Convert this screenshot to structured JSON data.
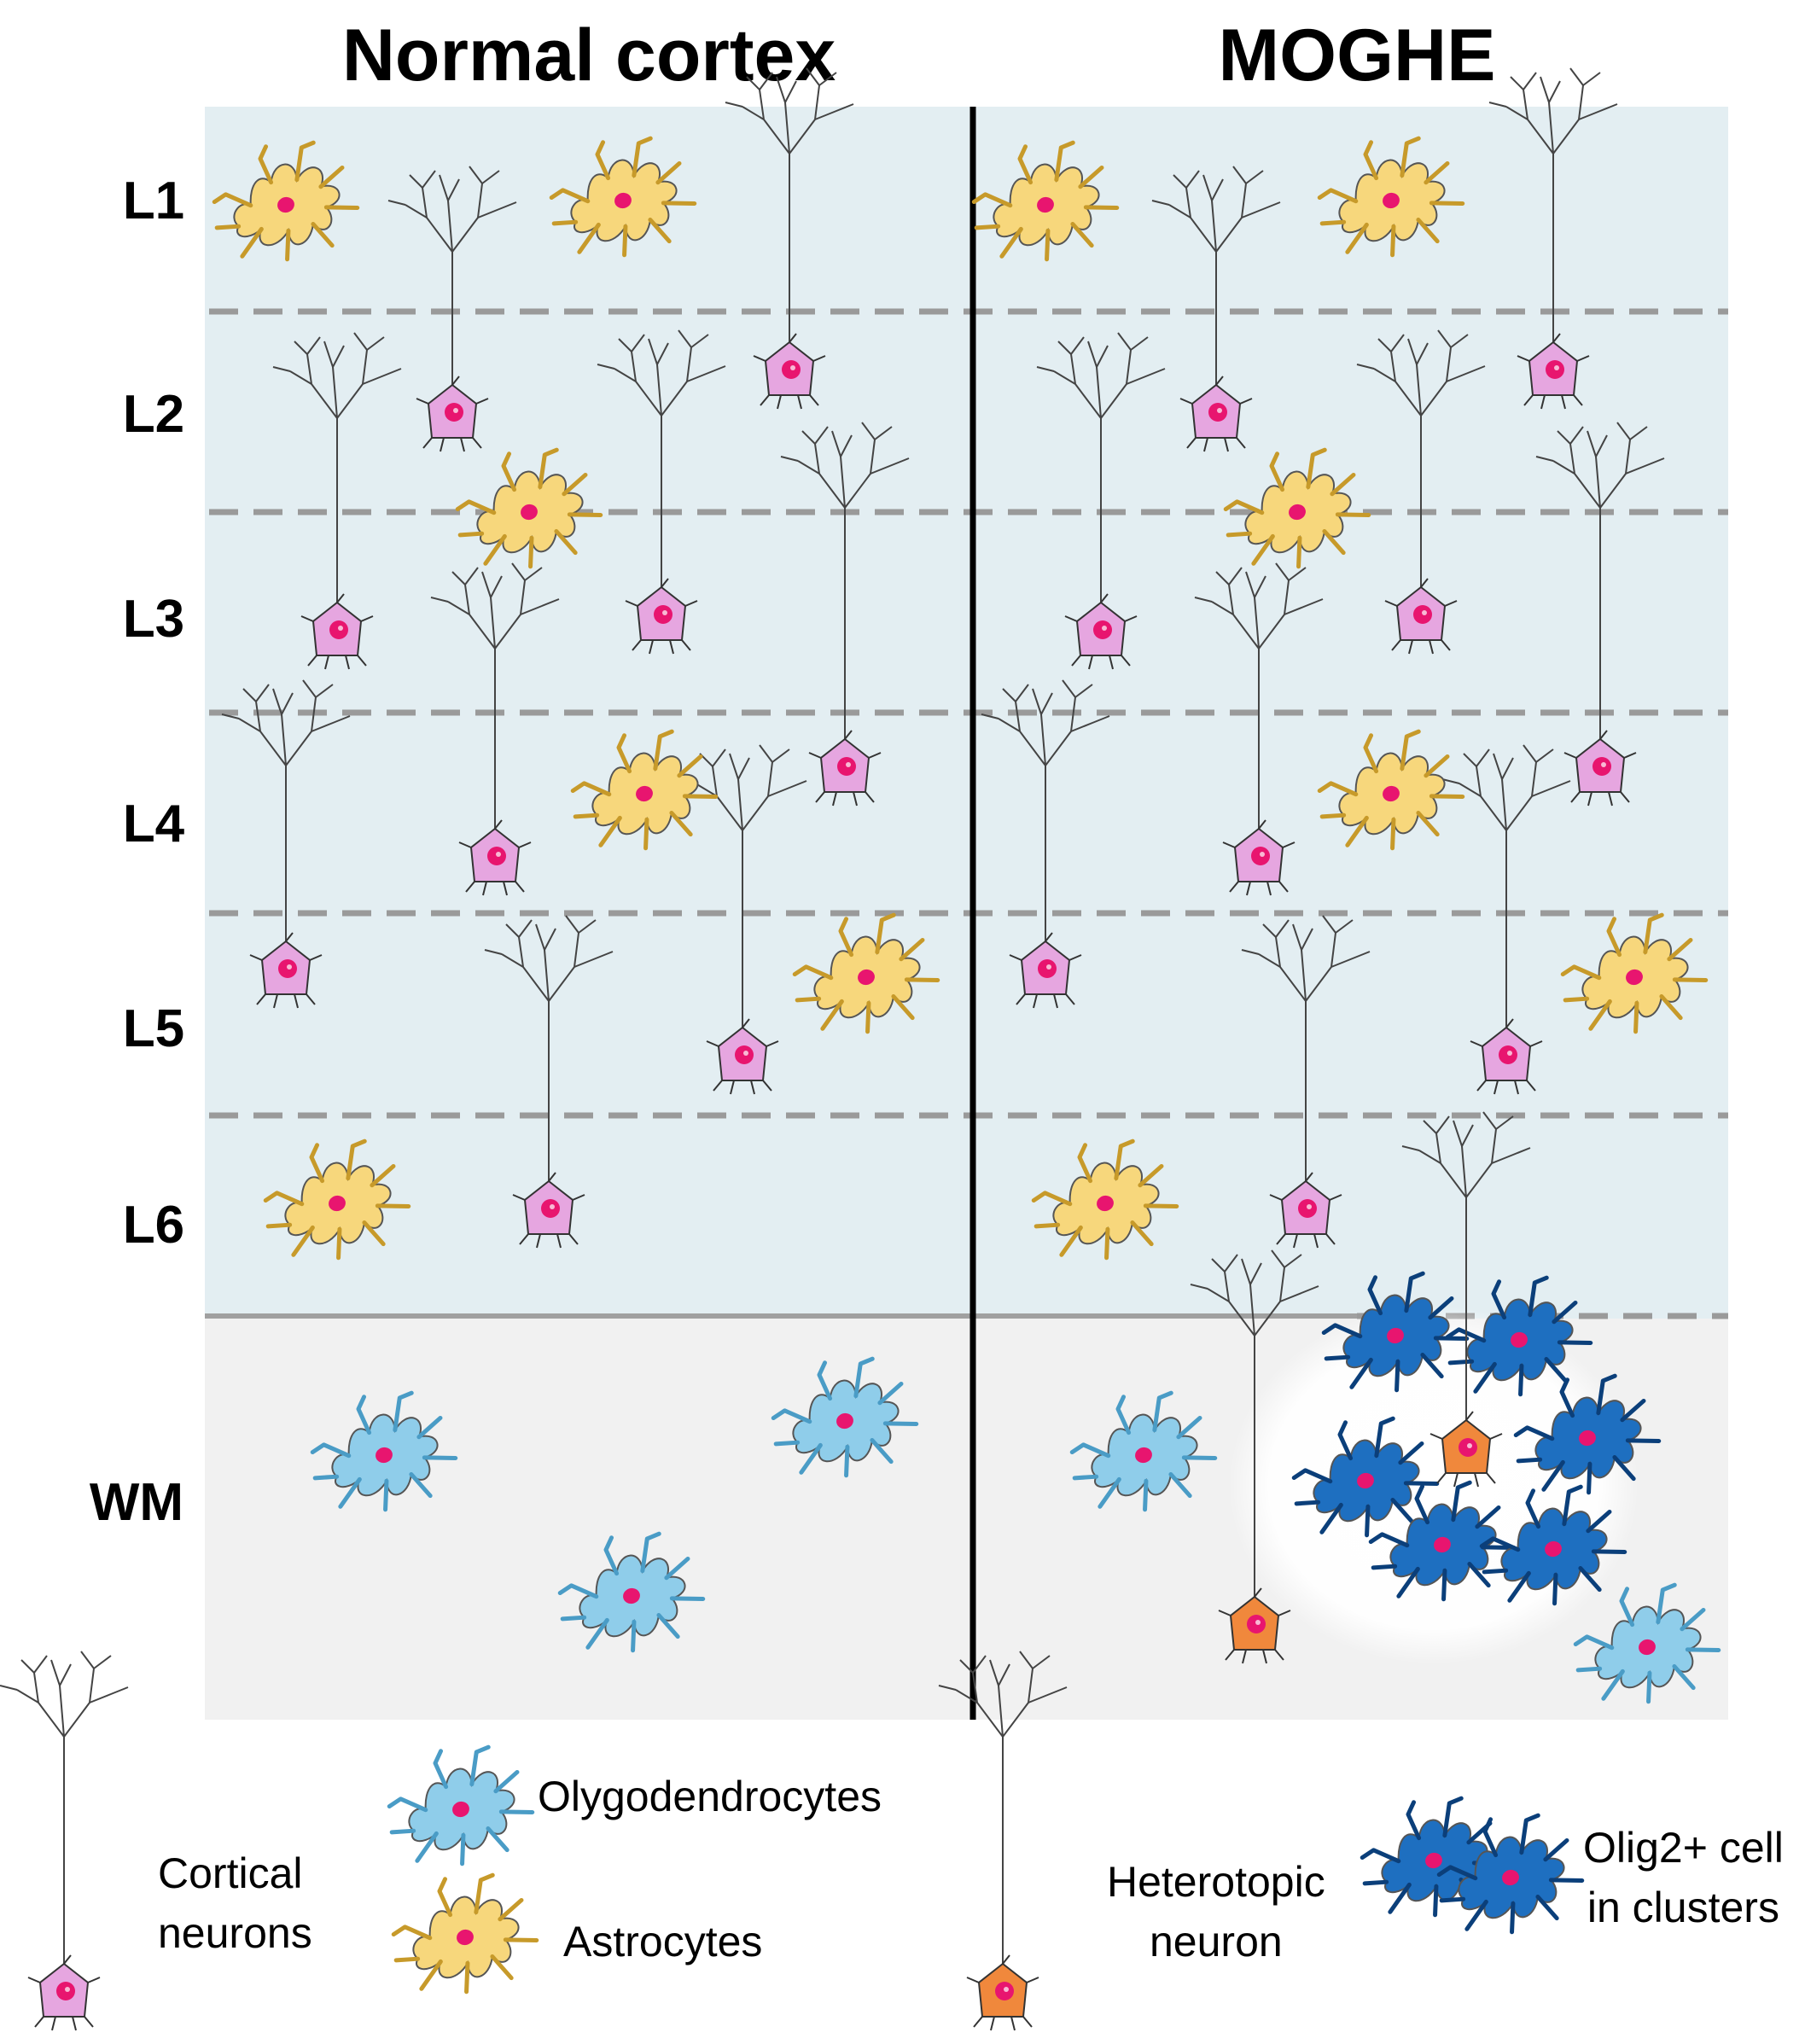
{
  "headings": {
    "left": "Normal cortex",
    "right": "MOGHE"
  },
  "layers": [
    "L1",
    "L2",
    "L3",
    "L4",
    "L5",
    "L6",
    "WM"
  ],
  "legend": {
    "cortical": [
      "Cortical",
      "neurons"
    ],
    "oligo": "Olygodendrocytes",
    "astro": "Astrocytes",
    "hetero": [
      "Heterotopic",
      "neuron"
    ],
    "olig2": [
      "Olig2+ cell",
      "in clusters"
    ]
  },
  "colors": {
    "cortex_bg": "#e3eef2",
    "wm_bg": "#f1f1f1",
    "neuron_body": "#e6a6e0",
    "nucleus": "#e8156f",
    "astro_body": "#f7d77c",
    "oligo_body": "#8fcdea",
    "olig2_body": "#1e6fc0",
    "hetero_body": "#f0883c"
  }
}
